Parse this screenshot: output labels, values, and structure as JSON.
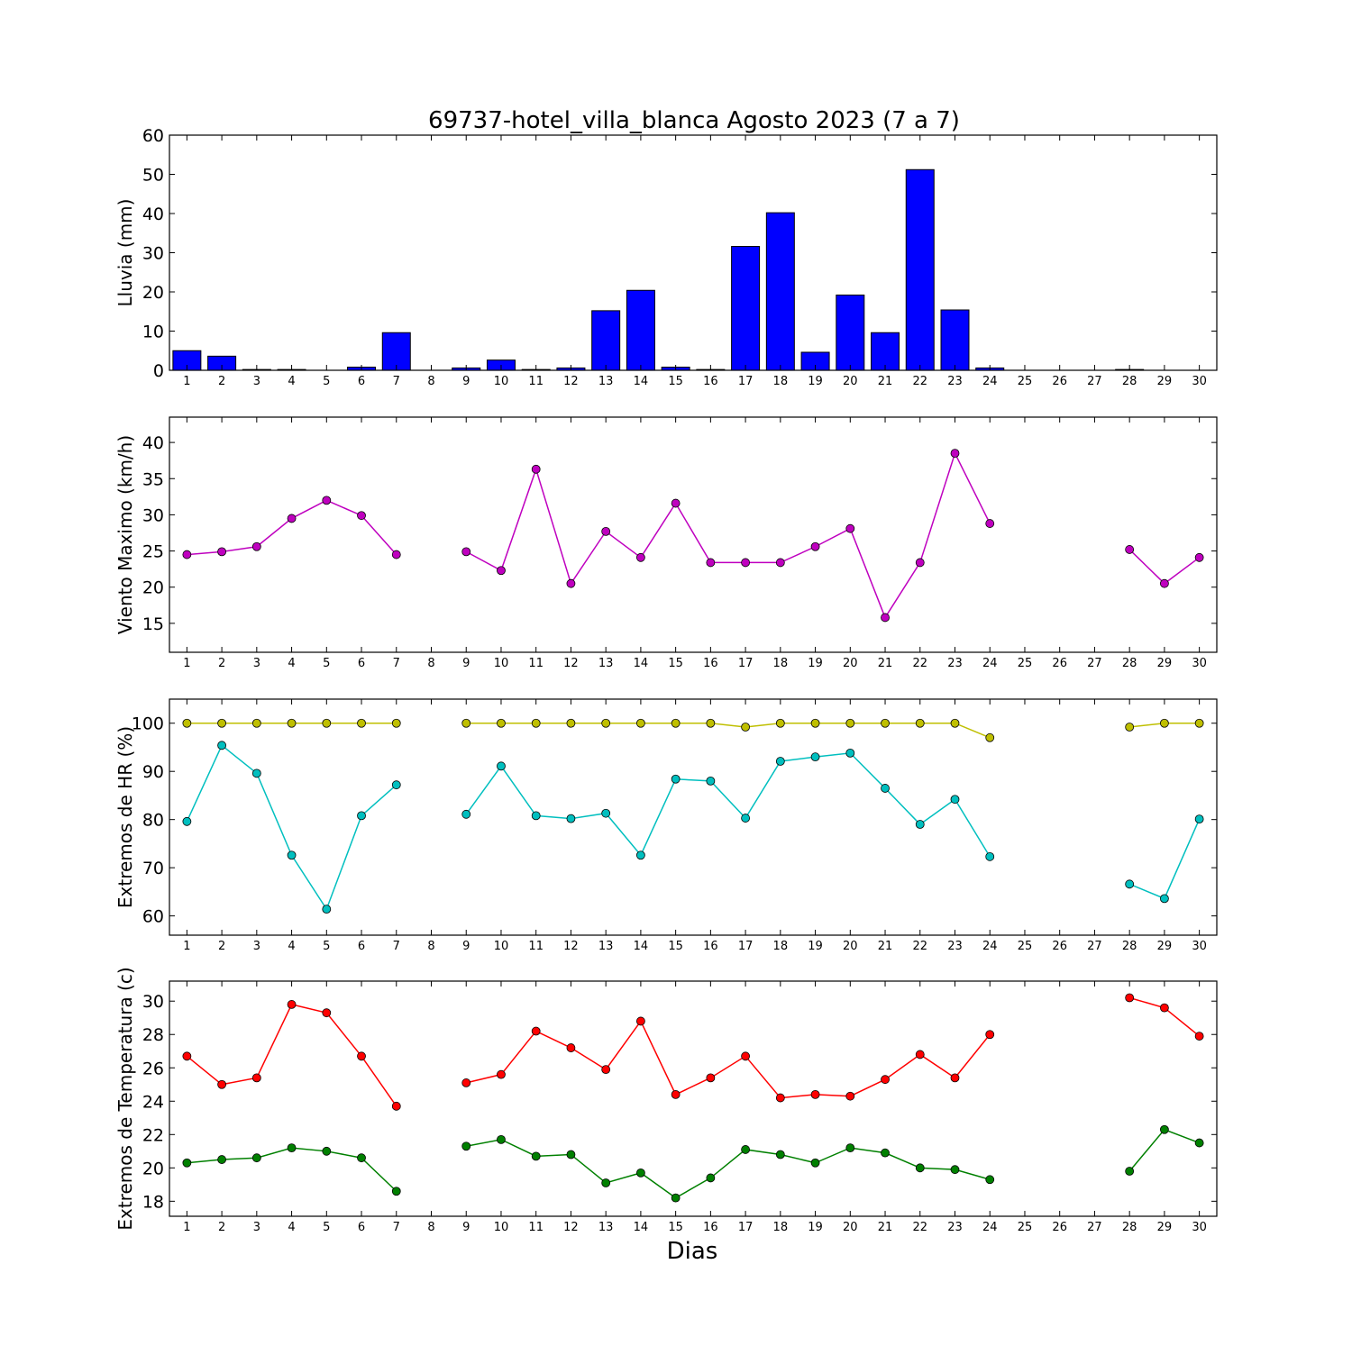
{
  "chart_data": {
    "title": "69737-hotel_villa_blanca Agosto 2023  (7 a 7)",
    "xlabel": "Dias",
    "days": [
      1,
      2,
      3,
      4,
      5,
      6,
      7,
      8,
      9,
      10,
      11,
      12,
      13,
      14,
      15,
      16,
      17,
      18,
      19,
      20,
      21,
      22,
      23,
      24,
      25,
      26,
      27,
      28,
      29,
      30
    ],
    "panels": [
      {
        "id": "rain",
        "type": "bar",
        "ylabel": "Lluvia (mm)",
        "ylim": [
          0,
          60
        ],
        "yticks": [
          0,
          10,
          20,
          30,
          40,
          50,
          60
        ],
        "series": [
          {
            "color": "#0000ff",
            "values": [
              5.0,
              3.6,
              0.2,
              0.2,
              0.0,
              0.8,
              9.6,
              0.0,
              0.6,
              2.6,
              0.2,
              0.6,
              15.2,
              20.4,
              0.8,
              0.2,
              31.6,
              40.2,
              4.6,
              19.2,
              9.6,
              51.2,
              15.4,
              0.6,
              0.0,
              0.0,
              0.0,
              0.2,
              0.0,
              0.0
            ]
          }
        ]
      },
      {
        "id": "wind",
        "type": "line",
        "ylabel": "Viento Maximo (km/h)",
        "ylim": [
          11,
          43.5
        ],
        "yticks": [
          15,
          20,
          25,
          30,
          35,
          40
        ],
        "series": [
          {
            "color": "#bf00bf",
            "values": [
              24.5,
              24.9,
              25.6,
              29.5,
              32.0,
              29.9,
              24.5,
              null,
              24.9,
              22.3,
              36.3,
              20.5,
              27.7,
              24.1,
              31.6,
              23.4,
              23.4,
              23.4,
              25.6,
              28.1,
              15.8,
              23.4,
              38.5,
              28.8,
              null,
              null,
              null,
              25.2,
              20.5,
              24.1
            ]
          }
        ]
      },
      {
        "id": "humidity",
        "type": "line",
        "ylabel": "Extremos de HR (%)",
        "ylim": [
          56,
          105
        ],
        "yticks": [
          60,
          70,
          80,
          90,
          100
        ],
        "series": [
          {
            "color": "#bfbf00",
            "values": [
              100,
              100,
              100,
              100,
              100,
              100,
              100,
              null,
              100,
              100,
              100,
              100,
              100,
              100,
              100,
              100,
              99.2,
              100,
              100,
              100,
              100,
              100,
              100,
              97.0,
              null,
              null,
              null,
              99.2,
              100,
              100
            ]
          },
          {
            "color": "#00bfbf",
            "values": [
              79.6,
              95.4,
              89.6,
              72.6,
              61.4,
              80.8,
              87.2,
              null,
              81.1,
              91.1,
              80.8,
              80.2,
              81.3,
              72.6,
              88.4,
              88.0,
              80.3,
              92.1,
              93.0,
              93.8,
              86.5,
              79.0,
              84.2,
              72.3,
              null,
              null,
              null,
              66.6,
              63.6,
              80.1
            ]
          }
        ]
      },
      {
        "id": "temperature",
        "type": "line",
        "ylabel": "Extremos de Temperatura (c)",
        "ylim": [
          17.1,
          31.2
        ],
        "yticks": [
          18,
          20,
          22,
          24,
          26,
          28,
          30
        ],
        "series": [
          {
            "color": "#ff0000",
            "values": [
              26.7,
              25.0,
              25.4,
              29.8,
              29.3,
              26.7,
              23.7,
              null,
              25.1,
              25.6,
              28.2,
              27.2,
              25.9,
              28.8,
              24.4,
              25.4,
              26.7,
              24.2,
              24.4,
              24.3,
              25.3,
              26.8,
              25.4,
              28.0,
              null,
              null,
              null,
              30.2,
              29.6,
              27.9
            ]
          },
          {
            "color": "#008000",
            "values": [
              20.3,
              20.5,
              20.6,
              21.2,
              21.0,
              20.6,
              18.6,
              null,
              21.3,
              21.7,
              20.7,
              20.8,
              19.1,
              19.7,
              18.2,
              19.4,
              21.1,
              20.8,
              20.3,
              21.2,
              20.9,
              20.0,
              19.9,
              19.3,
              null,
              null,
              null,
              19.8,
              22.3,
              21.5
            ]
          }
        ]
      }
    ]
  }
}
